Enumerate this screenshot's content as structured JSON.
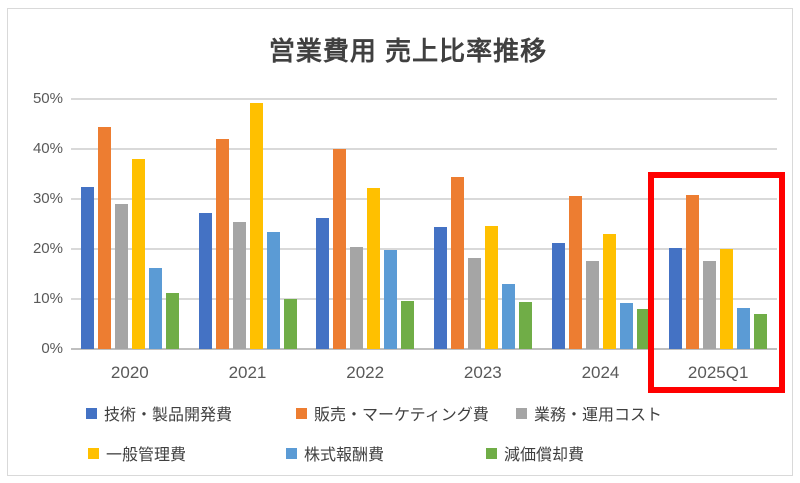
{
  "chart_data": {
    "type": "bar",
    "title": "営業費用 売上比率推移",
    "categories": [
      "2020",
      "2021",
      "2022",
      "2023",
      "2024",
      "2025Q1"
    ],
    "series": [
      {
        "name": "技術・製品開発費",
        "color": "#4472C4",
        "values": [
          32.4,
          27.3,
          26.3,
          24.5,
          21.3,
          20.3
        ]
      },
      {
        "name": "販売・マーケティング費",
        "color": "#ED7D31",
        "values": [
          44.4,
          42.1,
          40.0,
          34.5,
          30.6,
          30.9
        ]
      },
      {
        "name": "業務・運用コスト",
        "color": "#A5A5A5",
        "values": [
          29.0,
          25.4,
          20.4,
          18.3,
          17.6,
          17.6
        ]
      },
      {
        "name": "一般管理費",
        "color": "#FFC000",
        "values": [
          38.0,
          49.2,
          32.3,
          24.7,
          23.0,
          20.1
        ]
      },
      {
        "name": "株式報酬費",
        "color": "#5B9BD5",
        "values": [
          16.2,
          23.5,
          19.8,
          13.0,
          9.3,
          8.3
        ]
      },
      {
        "name": "減価償却費",
        "color": "#70AD47",
        "values": [
          11.2,
          10.0,
          9.7,
          9.5,
          8.0,
          7.0
        ]
      }
    ],
    "ylim": [
      0,
      50
    ],
    "ytick_step": 10,
    "ytick_labels": [
      "0%",
      "10%",
      "20%",
      "30%",
      "40%",
      "50%"
    ],
    "grid": true,
    "legend_position": "bottom",
    "highlight": {
      "category": "2025Q1",
      "color": "#FF0000"
    }
  }
}
